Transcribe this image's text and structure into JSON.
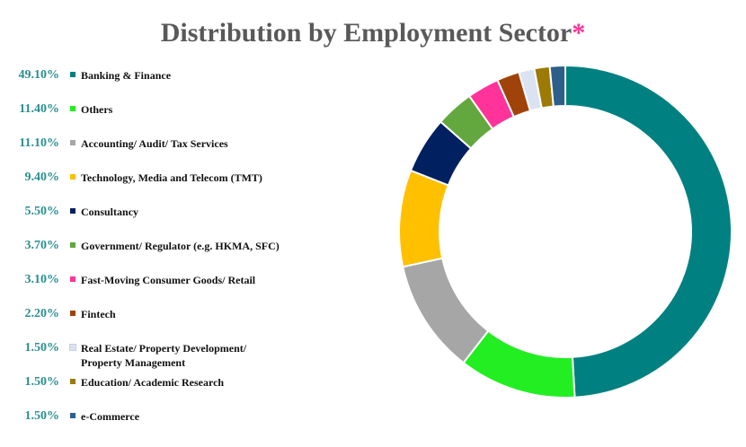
{
  "chart_data": {
    "type": "pie",
    "variant": "donut",
    "title": "Distribution by Employment Sector",
    "title_marker": "*",
    "legend_position": "left",
    "categories": [
      "Banking & Finance",
      "Others",
      "Accounting/ Audit/ Tax Services",
      "Technology, Media and Telecom (TMT)",
      "Consultancy",
      "Government/ Regulator (e.g. HKMA, SFC)",
      "Fast-Moving Consumer Goods/ Retail",
      "Fintech",
      "Real Estate/ Property Development/ Property Management",
      "Education/ Academic Research",
      "e-Commerce"
    ],
    "values": [
      49.1,
      11.4,
      11.1,
      9.4,
      5.5,
      3.7,
      3.1,
      2.2,
      1.5,
      1.5,
      1.5
    ],
    "value_labels": [
      "49.10%",
      "11.40%",
      "11.10%",
      "9.40%",
      "5.50%",
      "3.70%",
      "3.10%",
      "2.20%",
      "1.50%",
      "1.50%",
      "1.50%"
    ],
    "colors": [
      "#008080",
      "#22ee22",
      "#a6a6a6",
      "#ffc000",
      "#002060",
      "#62a83e",
      "#ff3399",
      "#a0430a",
      "#dbe2f1",
      "#9c7a06",
      "#2e5f8a"
    ]
  }
}
